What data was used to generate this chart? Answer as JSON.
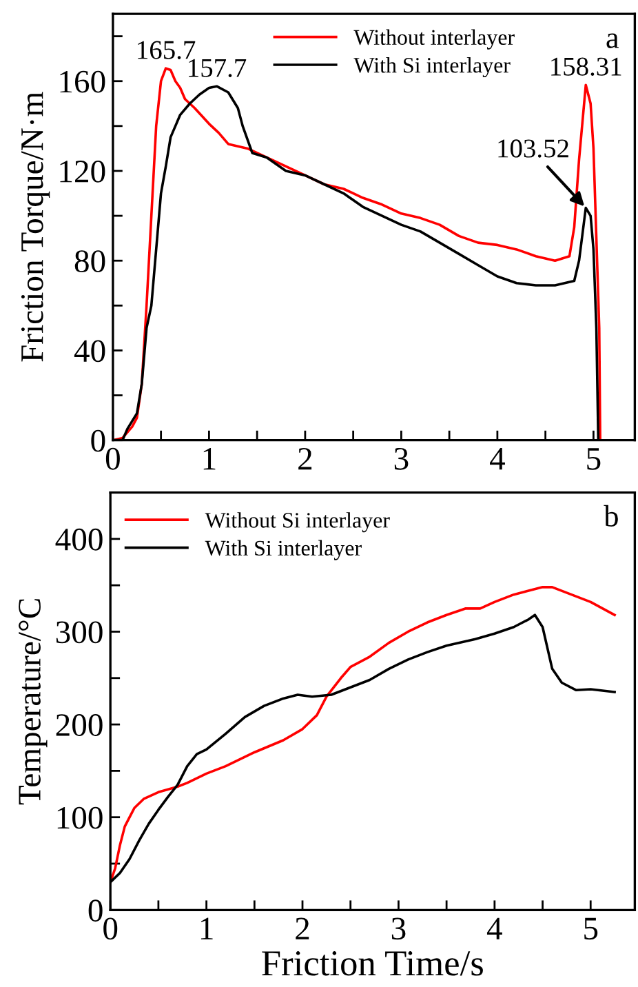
{
  "chart_data": [
    {
      "type": "line",
      "ylabel": "Friction Torque/N·m",
      "xlim": [
        0,
        5.43
      ],
      "ylim": [
        0,
        190
      ],
      "xticks": [
        0,
        {
          "value": 0.5,
          "label": null
        },
        1,
        {
          "value": 1.5,
          "label": null
        },
        2,
        {
          "value": 2.5,
          "label": null
        },
        3,
        {
          "value": 3.5,
          "label": null
        },
        4,
        {
          "value": 4.5,
          "label": null
        },
        5
      ],
      "yticks": [
        0,
        {
          "value": 20,
          "label": null
        },
        40,
        {
          "value": 60,
          "label": null
        },
        80,
        {
          "value": 100,
          "label": null
        },
        120,
        {
          "value": 140,
          "label": null
        },
        160,
        {
          "value": 180,
          "label": null
        }
      ],
      "legend": "top right",
      "grid": false,
      "marker": "none",
      "line_style": "solid",
      "annotations": [
        "a",
        {
          "text": "165.7",
          "x": 0.55,
          "y": 165.7
        },
        {
          "text": "157.7",
          "x": 1.08,
          "y": 157.7
        },
        {
          "text": "158.31",
          "x": 4.92,
          "y": 158.31
        },
        {
          "text": "103.52",
          "x": 4.92,
          "y": 103.52
        }
      ],
      "series": [
        {
          "name": "Without interlayer",
          "color": "#ff0000",
          "x": [
            0,
            0.1,
            0.2,
            0.25,
            0.3,
            0.35,
            0.4,
            0.45,
            0.5,
            0.55,
            0.6,
            0.65,
            0.7,
            0.75,
            0.85,
            1.0,
            1.1,
            1.2,
            1.4,
            1.6,
            1.8,
            2.0,
            2.2,
            2.4,
            2.6,
            2.8,
            3.0,
            3.2,
            3.4,
            3.6,
            3.8,
            4.0,
            4.2,
            4.4,
            4.6,
            4.75,
            4.8,
            4.85,
            4.92,
            4.97,
            5.0,
            5.03,
            5.06,
            5.07
          ],
          "values": [
            0,
            1,
            6,
            10,
            25,
            60,
            100,
            140,
            160,
            165.7,
            165,
            160,
            157,
            152,
            148,
            141,
            137,
            132,
            130,
            126,
            122,
            118,
            114,
            112,
            108,
            105,
            101,
            99,
            96,
            91,
            88,
            87,
            85,
            82,
            80,
            82,
            95,
            125,
            158.31,
            150,
            130,
            90,
            50,
            0
          ]
        },
        {
          "name": "With Si interlayer",
          "color": "#000000",
          "x": [
            0,
            0.1,
            0.15,
            0.25,
            0.3,
            0.35,
            0.4,
            0.45,
            0.5,
            0.55,
            0.6,
            0.7,
            0.8,
            0.9,
            1.0,
            1.08,
            1.2,
            1.3,
            1.35,
            1.45,
            1.6,
            1.8,
            2.0,
            2.2,
            2.4,
            2.6,
            2.8,
            3.0,
            3.2,
            3.4,
            3.6,
            3.8,
            4.0,
            4.2,
            4.4,
            4.6,
            4.8,
            4.85,
            4.92,
            4.97,
            5.0,
            5.03,
            5.05
          ],
          "values": [
            0,
            0,
            5,
            12,
            25,
            50,
            60,
            85,
            110,
            122,
            135,
            145,
            150,
            154,
            157,
            157.7,
            155,
            148,
            140,
            128,
            126,
            120,
            118,
            114,
            110,
            104,
            100,
            96,
            93,
            88,
            83,
            78,
            73,
            70,
            69,
            69,
            71,
            80,
            103.52,
            100,
            85,
            50,
            0
          ]
        }
      ]
    },
    {
      "type": "line",
      "xlabel": "Friction Time/s",
      "ylabel": "Temperature/°C",
      "xlim": [
        0,
        5.46
      ],
      "ylim": [
        0,
        450
      ],
      "xticks": [
        0,
        {
          "value": 0.5,
          "label": null
        },
        1,
        {
          "value": 1.5,
          "label": null
        },
        2,
        {
          "value": 2.5,
          "label": null
        },
        3,
        {
          "value": 3.5,
          "label": null
        },
        4,
        {
          "value": 4.5,
          "label": null
        },
        5
      ],
      "yticks": [
        0,
        {
          "value": 50,
          "label": null
        },
        100,
        {
          "value": 150,
          "label": null
        },
        200,
        {
          "value": 250,
          "label": null
        },
        300,
        {
          "value": 350,
          "label": null
        },
        400
      ],
      "legend": "top left",
      "grid": false,
      "marker": "none",
      "line_style": "solid",
      "annotations": [
        "b"
      ],
      "series": [
        {
          "name": "Without Si interlayer",
          "color": "#ff0000",
          "x": [
            0,
            0.05,
            0.1,
            0.15,
            0.2,
            0.25,
            0.35,
            0.5,
            0.7,
            0.8,
            1.0,
            1.2,
            1.5,
            1.8,
            2.0,
            2.15,
            2.25,
            2.4,
            2.5,
            2.7,
            2.9,
            3.1,
            3.3,
            3.5,
            3.7,
            3.85,
            4.0,
            4.2,
            4.5,
            4.6,
            4.8,
            5.0,
            5.25
          ],
          "values": [
            30,
            45,
            70,
            90,
            100,
            110,
            120,
            127,
            133,
            137,
            147,
            155,
            170,
            183,
            195,
            210,
            230,
            250,
            262,
            273,
            288,
            300,
            310,
            318,
            325,
            325,
            332,
            340,
            348,
            348,
            340,
            332,
            318
          ]
        },
        {
          "name": "With Si interlayer",
          "color": "#000000",
          "x": [
            0,
            0.1,
            0.2,
            0.3,
            0.4,
            0.5,
            0.6,
            0.7,
            0.8,
            0.9,
            1.0,
            1.2,
            1.4,
            1.6,
            1.8,
            1.95,
            2.1,
            2.3,
            2.5,
            2.7,
            2.9,
            3.1,
            3.3,
            3.5,
            3.8,
            4.0,
            4.2,
            4.35,
            4.42,
            4.5,
            4.6,
            4.7,
            4.85,
            5.0,
            5.25
          ],
          "values": [
            30,
            40,
            55,
            75,
            93,
            108,
            122,
            135,
            155,
            168,
            173,
            190,
            208,
            220,
            228,
            232,
            230,
            232,
            240,
            248,
            260,
            270,
            278,
            285,
            292,
            298,
            305,
            313,
            318,
            305,
            260,
            245,
            237,
            238,
            235
          ]
        }
      ]
    }
  ]
}
